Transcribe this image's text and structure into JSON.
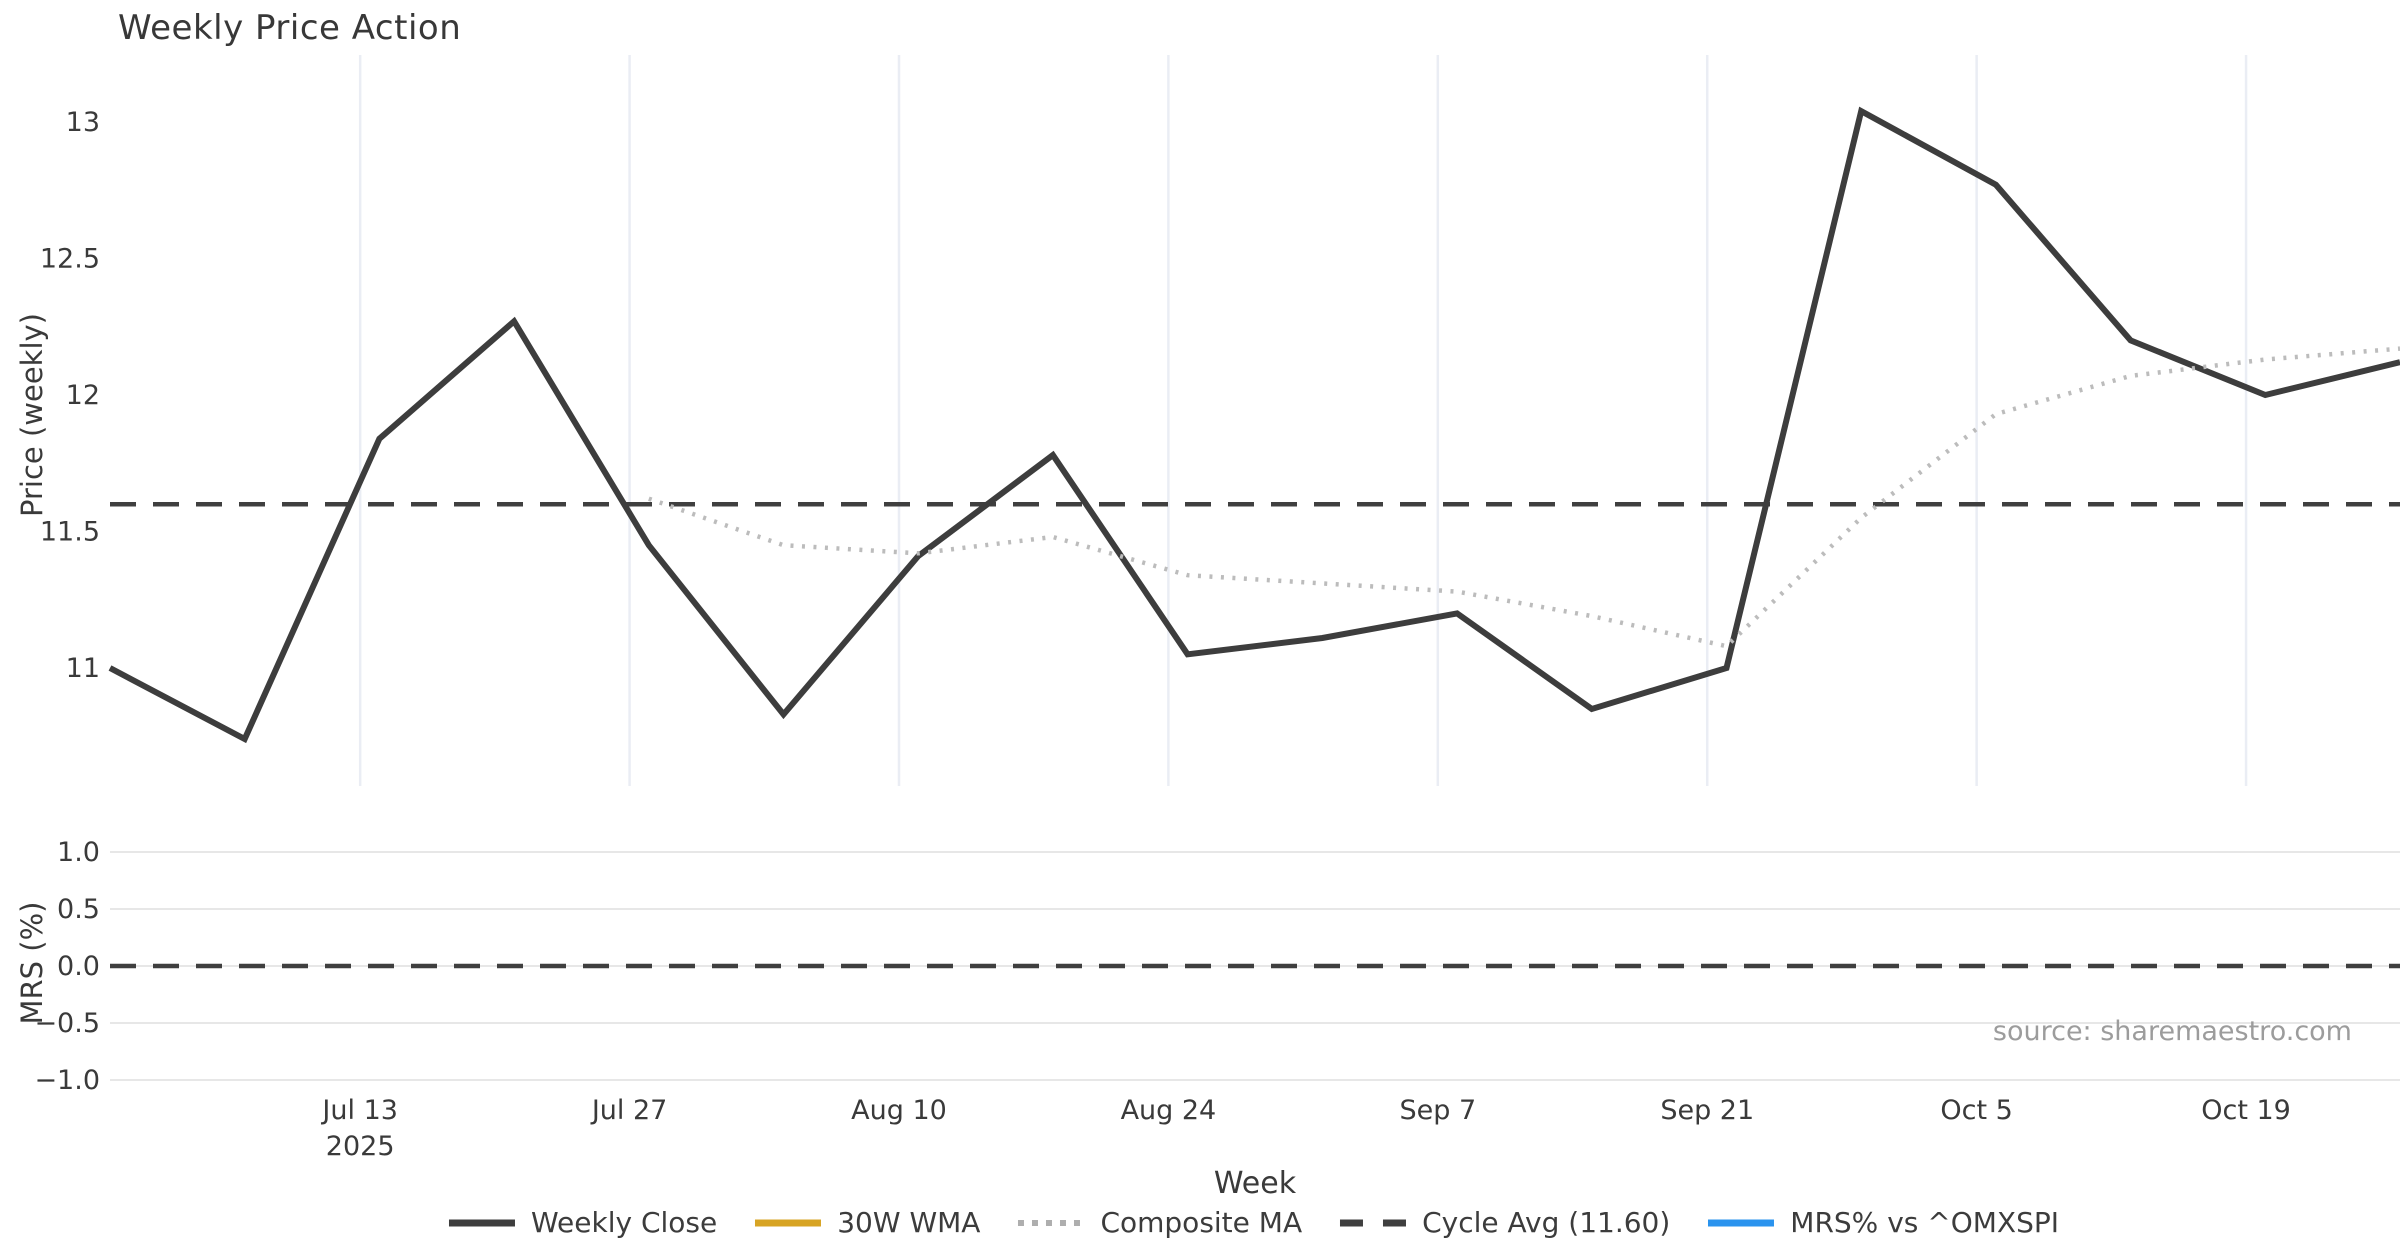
{
  "title": "Weekly Price Action",
  "source_note": "source: sharemaestro.com",
  "xlabel": "Week",
  "top_chart": {
    "ylabel": "Price (weekly)",
    "yticks": [
      {
        "label": "13",
        "value": 13
      },
      {
        "label": "12.5",
        "value": 12.5
      },
      {
        "label": "12",
        "value": 12
      },
      {
        "label": "11.5",
        "value": 11.5
      },
      {
        "label": "11",
        "value": 11
      }
    ]
  },
  "bottom_chart": {
    "ylabel": "MRS (%)",
    "yticks": [
      {
        "label": "1.0",
        "value": 1.0
      },
      {
        "label": "0.5",
        "value": 0.5
      },
      {
        "label": "0.0",
        "value": 0.0
      },
      {
        "label": "−0.5",
        "value": -0.5
      },
      {
        "label": "−1.0",
        "value": -1.0
      }
    ]
  },
  "xticks": [
    {
      "label": "Jul 13",
      "sublabel": "2025",
      "day": 13
    },
    {
      "label": "Jul 27",
      "sublabel": "",
      "day": 27
    },
    {
      "label": "Aug 10",
      "sublabel": "",
      "day": 41
    },
    {
      "label": "Aug 24",
      "sublabel": "",
      "day": 55
    },
    {
      "label": "Sep 7",
      "sublabel": "",
      "day": 69
    },
    {
      "label": "Sep 21",
      "sublabel": "",
      "day": 83
    },
    {
      "label": "Oct 5",
      "sublabel": "",
      "day": 97
    },
    {
      "label": "Oct 19",
      "sublabel": "",
      "day": 111
    }
  ],
  "legend": [
    {
      "label": "Weekly Close",
      "color": "#3d3d3d",
      "style": "solid"
    },
    {
      "label": "30W WMA",
      "color": "#d7a424",
      "style": "solid"
    },
    {
      "label": "Composite MA",
      "color": "#aeaeae",
      "style": "dotted"
    },
    {
      "label": "Cycle Avg (11.60)",
      "color": "#3f3f3f",
      "style": "dashed"
    },
    {
      "label": "MRS% vs ^OMXSPI",
      "color": "#2a93ee",
      "style": "solid"
    }
  ],
  "chart_data": {
    "type": "line",
    "title": "Weekly Price Action",
    "xlabel": "Week",
    "x_weekly_dates": [
      "Jun 30",
      "Jul 7",
      "Jul 14",
      "Jul 21",
      "Jul 28",
      "Aug 4",
      "Aug 11",
      "Aug 18",
      "Aug 25",
      "Sep 1",
      "Sep 8",
      "Sep 15",
      "Sep 22",
      "Sep 29",
      "Oct 6",
      "Oct 13",
      "Oct 20",
      "Oct 27"
    ],
    "series": [
      {
        "name": "Weekly Close",
        "panel": "top",
        "style": "solid",
        "color": "#3d3d3d",
        "values": [
          11.0,
          10.74,
          11.84,
          12.27,
          11.45,
          10.83,
          11.41,
          11.78,
          11.05,
          11.11,
          11.2,
          10.85,
          11.0,
          13.04,
          12.77,
          12.2,
          12.0,
          12.12
        ]
      },
      {
        "name": "Composite MA",
        "panel": "top",
        "style": "dotted",
        "color": "#bcbcbc",
        "values": [
          null,
          null,
          null,
          null,
          11.62,
          11.45,
          11.42,
          11.48,
          11.34,
          11.31,
          11.28,
          11.19,
          11.08,
          11.55,
          11.93,
          12.07,
          12.13,
          12.17
        ]
      },
      {
        "name": "30W WMA",
        "panel": "top",
        "style": "solid",
        "color": "#d7a424",
        "values": []
      },
      {
        "name": "MRS% vs ^OMXSPI",
        "panel": "bottom",
        "style": "solid",
        "color": "#2a93ee",
        "values": []
      }
    ],
    "reference_lines": [
      {
        "name": "Cycle Avg",
        "panel": "top",
        "value": 11.6,
        "style": "dashed",
        "color": "#3f3f3f"
      },
      {
        "name": "MRS zero",
        "panel": "bottom",
        "value": 0.0,
        "style": "dashed",
        "color": "#3f3f3f"
      }
    ],
    "top_panel_ylim": [
      10.57,
      13.24
    ],
    "bottom_panel_ylim": [
      -1.05,
      1.05
    ],
    "grid": {
      "top_panel": "vertical biweekly date gridlines",
      "bottom_panel": "horizontal gridlines at each ytick"
    },
    "legend_position": "bottom center"
  }
}
